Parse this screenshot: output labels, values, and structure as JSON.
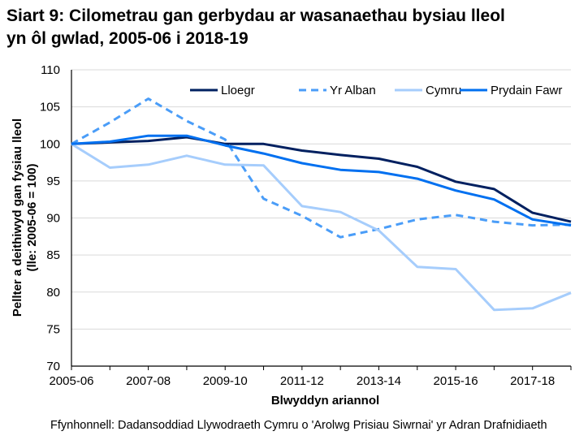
{
  "chart_data": {
    "type": "line",
    "title": [
      "Siart 9: Cilometrau gan gerbydau ar wasanaethau bysiau lleol",
      "yn ôl gwlad, 2005-06 i 2018-19"
    ],
    "xlabel": "Blwyddyn ariannol",
    "ylabel": [
      "Pellter a deithiwyd gan fysiau lleol",
      "(lle: 2005-06 = 100)"
    ],
    "categories": [
      "2005-06",
      "2006-07",
      "2007-08",
      "2008-09",
      "2009-10",
      "2010-11",
      "2011-12",
      "2012-13",
      "2013-14",
      "2014-15",
      "2015-16",
      "2016-17",
      "2017-18",
      "2018-19"
    ],
    "x_tick_labels": [
      "2005-06",
      "2007-08",
      "2009-10",
      "2011-12",
      "2013-14",
      "2015-16",
      "2017-18"
    ],
    "ylim": [
      70,
      110
    ],
    "y_ticks": [
      70,
      75,
      80,
      85,
      90,
      95,
      100,
      105,
      110
    ],
    "grid": "horizontal",
    "legend": "top",
    "series": [
      {
        "name": "Lloegr",
        "color": "#002060",
        "dash": false,
        "values": [
          100,
          100.2,
          100.4,
          100.9,
          100.0,
          100.0,
          99.1,
          98.5,
          98.0,
          96.9,
          94.9,
          93.9,
          90.7,
          89.5
        ]
      },
      {
        "name": "Yr Alban",
        "color": "#4a9df8",
        "dash": true,
        "values": [
          100,
          102.9,
          106.1,
          103.1,
          100.6,
          92.6,
          90.3,
          87.4,
          88.5,
          89.8,
          90.4,
          89.5,
          89.0,
          89.1
        ]
      },
      {
        "name": "Cymru",
        "color": "#a6cdfc",
        "dash": false,
        "values": [
          100,
          96.8,
          97.2,
          98.4,
          97.2,
          97.1,
          91.6,
          90.8,
          88.3,
          83.4,
          83.1,
          77.6,
          77.8,
          79.9
        ]
      },
      {
        "name": "Prydain Fawr",
        "color": "#0070f0",
        "dash": false,
        "values": [
          100,
          100.3,
          101.1,
          101.1,
          99.8,
          98.7,
          97.4,
          96.5,
          96.2,
          95.3,
          93.7,
          92.5,
          89.8,
          89.0
        ]
      }
    ]
  },
  "source": "Ffynhonnell: Dadansoddiad Llywodraeth Cymru o 'Arolwg Prisiau Siwrnai' yr Adran Drafnidiaeth"
}
